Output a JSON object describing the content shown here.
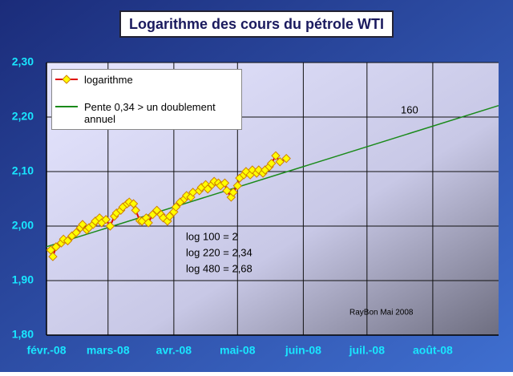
{
  "chart_data": {
    "type": "line",
    "title": "Logarithme des cours du pétrole WTI",
    "xlim": [
      0,
      213
    ],
    "xticks": [
      {
        "value": 0,
        "label": "févr.-08"
      },
      {
        "value": 29,
        "label": "mars-08"
      },
      {
        "value": 60,
        "label": "avr.-08"
      },
      {
        "value": 90,
        "label": "mai-08"
      },
      {
        "value": 121,
        "label": "juin-08"
      },
      {
        "value": 151,
        "label": "juil.-08"
      },
      {
        "value": 182,
        "label": "août-08"
      }
    ],
    "ylim": [
      1.8,
      2.3
    ],
    "yticks": [
      {
        "value": 1.8,
        "label": "1,80"
      },
      {
        "value": 1.9,
        "label": "1,90"
      },
      {
        "value": 2.0,
        "label": "2,00"
      },
      {
        "value": 2.1,
        "label": "2,10"
      },
      {
        "value": 2.2,
        "label": "2,20"
      },
      {
        "value": 2.3,
        "label": "2,30"
      }
    ],
    "grid": true,
    "series": [
      {
        "name": "logarithme",
        "color": "#e00000",
        "marker_color": "#ffff00",
        "x": [
          2,
          3,
          4.5,
          7,
          8,
          10,
          12,
          14,
          16,
          17,
          19,
          20,
          22,
          23,
          25,
          26,
          28,
          30,
          32,
          33,
          35,
          36,
          38,
          39,
          41,
          42,
          44,
          45,
          47,
          48,
          50,
          52,
          54,
          55,
          57,
          58,
          60,
          61,
          63,
          65,
          66,
          68,
          69,
          72,
          73,
          75,
          76,
          78,
          79,
          81,
          82,
          84,
          85,
          87,
          88,
          90,
          91,
          93,
          94,
          96,
          97,
          99,
          100,
          102,
          103,
          105,
          106,
          108,
          110,
          113
        ],
        "values": [
          1.956,
          1.944,
          1.962,
          1.969,
          1.976,
          1.973,
          1.982,
          1.988,
          1.997,
          2.003,
          1.993,
          1.997,
          2.003,
          2.009,
          2.015,
          2.006,
          2.012,
          2.0,
          2.018,
          2.024,
          2.029,
          2.035,
          2.041,
          2.044,
          2.041,
          2.029,
          2.01,
          2.009,
          2.015,
          2.006,
          2.021,
          2.029,
          2.021,
          2.015,
          2.009,
          2.018,
          2.026,
          2.035,
          2.044,
          2.05,
          2.056,
          2.053,
          2.062,
          2.065,
          2.071,
          2.076,
          2.068,
          2.076,
          2.082,
          2.079,
          2.074,
          2.079,
          2.065,
          2.053,
          2.062,
          2.074,
          2.088,
          2.094,
          2.1,
          2.094,
          2.103,
          2.097,
          2.103,
          2.097,
          2.103,
          2.109,
          2.115,
          2.129,
          2.118,
          2.124
        ]
      },
      {
        "name": "Pente 0,34 > un doublement annuel",
        "color": "#1a8a1a",
        "x": [
          0,
          213
        ],
        "values": [
          1.962,
          2.221
        ]
      }
    ],
    "annotations": [
      "160",
      "log 100 = 2",
      "log 220 = 2,34",
      "log 480 = 2,68",
      "RayBon Mai 2008"
    ]
  }
}
